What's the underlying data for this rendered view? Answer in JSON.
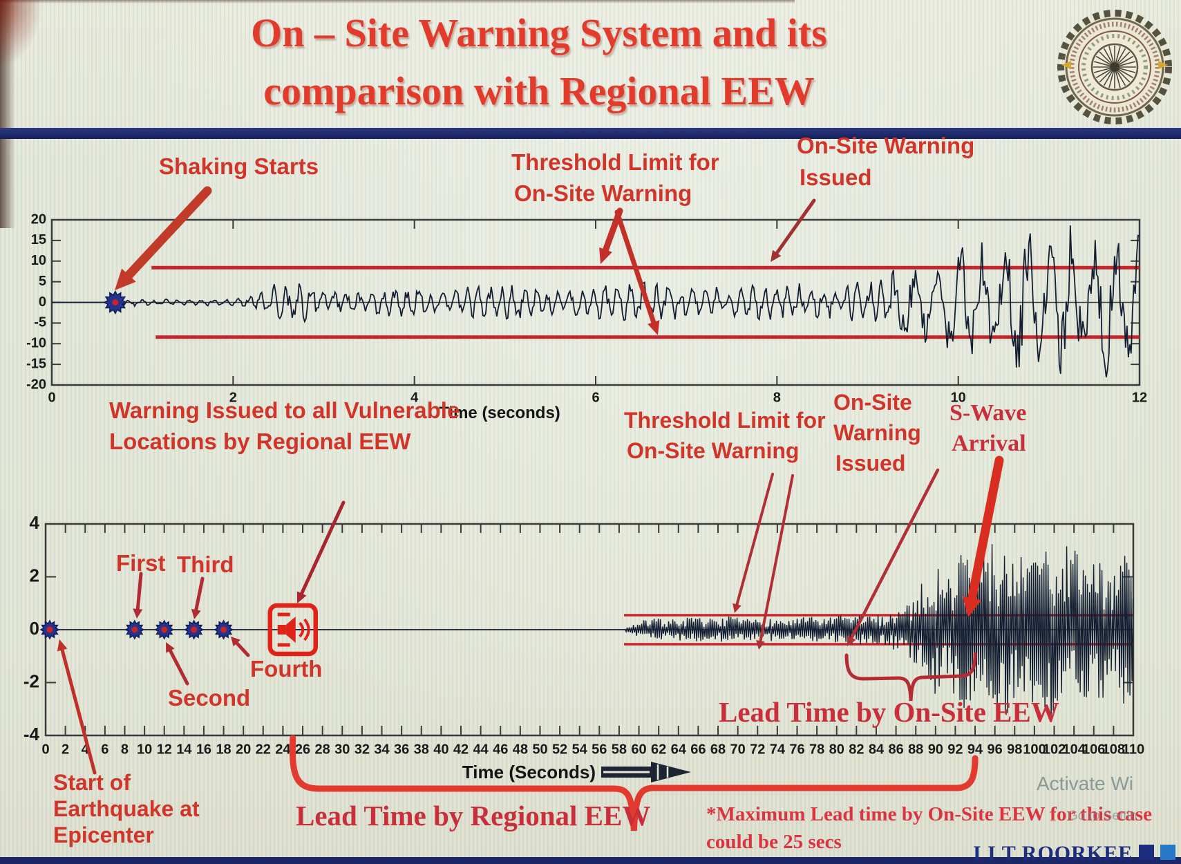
{
  "title": {
    "line1": "On – Site Warning System and its",
    "line2": "comparison with Regional EEW"
  },
  "logo": {
    "name": "iit-roorkee-seal"
  },
  "colors": {
    "title_red": "#e23b2b",
    "annotation_red": "#d13529",
    "serif_red": "#c92f3a",
    "threshold_red": "#c5262b",
    "arrow_dark_red": "#b02c32",
    "waveform": "#141e33",
    "marker_blue": "#23338f",
    "marker_center_red": "#cc2222",
    "navy_bar": "#1b2766",
    "brand_navy": "#1d2e7e"
  },
  "ann": {
    "shaking_starts": "Shaking Starts",
    "threshold_top_l1": "Threshold Limit for",
    "threshold_top_l2": "On-Site Warning",
    "onsite_top_l1": "On-Site Warning",
    "onsite_top_l2": "Issued",
    "warning_vulnerable_l1": "Warning Issued to all Vulnerable",
    "warning_vulnerable_l2": "Locations by Regional EEW",
    "first": "First",
    "second": "Second",
    "third": "Third",
    "fourth": "Fourth",
    "threshold_bot_l1": "Threshold Limit for",
    "threshold_bot_l2": "On-Site Warning",
    "onsite_bot_l1": "On-Site",
    "onsite_bot_l2": "Warning",
    "onsite_bot_l3": "Issued",
    "swave_l1": "S-Wave",
    "swave_l2": "Arrival",
    "start_epicenter_l1": "Start of",
    "start_epicenter_l2": "Earthquake at",
    "start_epicenter_l3": "Epicenter",
    "lead_onsite": "Lead Time by On-Site EEW",
    "lead_regional": "Lead Time by Regional EEW",
    "footnote_l1": "*Maximum Lead time by On-Site EEW for this case",
    "footnote_l2": "could be 25 secs"
  },
  "footer": {
    "brand": "I I T ROORKEE",
    "squares": [
      "#1d2e7e",
      "#2878c8",
      "#2f8c46"
    ],
    "watermark_line1": "Activate Wi",
    "watermark_line2": "Go to Settin"
  },
  "chart_data": [
    {
      "type": "line",
      "subtype": "seismogram",
      "xlabel": "Time (seconds)",
      "xlim": [
        0,
        12
      ],
      "ylim": [
        -20,
        20
      ],
      "xticks": [
        0,
        2,
        4,
        6,
        8,
        10,
        12
      ],
      "yticks": [
        20,
        15,
        10,
        5,
        0,
        -5,
        -10,
        -15,
        -20
      ],
      "grid": false,
      "thresholds": {
        "upper": 8.4,
        "lower": -8.4,
        "start_x": 1.1,
        "color": "#c5262b"
      },
      "events": {
        "shaking_starts_x": 0.7,
        "onsite_warning_issued_x": 9.2
      },
      "series": [
        {
          "name": "on-site ground acceleration",
          "amplitude_envelope": [
            [
              0,
              0
            ],
            [
              0.65,
              0
            ],
            [
              0.7,
              1.0
            ],
            [
              0.95,
              0.7
            ],
            [
              1.5,
              0.55
            ],
            [
              2.05,
              0.8
            ],
            [
              2.3,
              2.2
            ],
            [
              2.45,
              4.6
            ],
            [
              2.65,
              4.8
            ],
            [
              2.85,
              3.6
            ],
            [
              3.1,
              2.2
            ],
            [
              3.5,
              2.4
            ],
            [
              3.9,
              3.2
            ],
            [
              4.3,
              2.6
            ],
            [
              4.7,
              3.1
            ],
            [
              5.0,
              3.8
            ],
            [
              5.4,
              2.7
            ],
            [
              5.8,
              3.0
            ],
            [
              6.2,
              3.6
            ],
            [
              6.6,
              4.2
            ],
            [
              7.0,
              3.0
            ],
            [
              7.4,
              3.2
            ],
            [
              7.8,
              3.3
            ],
            [
              8.2,
              3.6
            ],
            [
              8.6,
              3.1
            ],
            [
              9.0,
              4.2
            ],
            [
              9.25,
              6.5
            ],
            [
              9.5,
              9.5
            ],
            [
              9.7,
              7.5
            ],
            [
              9.95,
              11
            ],
            [
              10.2,
              13.5
            ],
            [
              10.45,
              10
            ],
            [
              10.7,
              16
            ],
            [
              10.95,
              12
            ],
            [
              11.2,
              16.5
            ],
            [
              11.45,
              11
            ],
            [
              11.7,
              17
            ],
            [
              11.85,
              13
            ],
            [
              12,
              15
            ]
          ]
        }
      ]
    },
    {
      "type": "line",
      "subtype": "seismogram",
      "xlabel": "Time (Seconds)",
      "xlim": [
        0,
        110
      ],
      "ylim": [
        -4,
        4
      ],
      "xtick_step": 2,
      "yticks": [
        4,
        2,
        0,
        -2,
        -4
      ],
      "grid": false,
      "thresholds": {
        "upper": 0.55,
        "lower": -0.55,
        "start_x": 58.5,
        "color": "#c5262b"
      },
      "events": {
        "start_of_earthquake_x": 0,
        "p_wave_detections": [
          {
            "label": "First",
            "x": 9
          },
          {
            "label": "Second",
            "x": 12
          },
          {
            "label": "Third",
            "x": 15
          },
          {
            "label": "Fourth",
            "x": 18
          }
        ],
        "regional_warning_issued_x": 25,
        "onsite_warning_issued_x": 80,
        "s_wave_arrival_x": 93,
        "lead_time_onsite_span": [
          81,
          94
        ],
        "lead_time_regional_span": [
          25,
          94
        ],
        "max_onsite_lead_time": "could be 25 secs"
      },
      "series": [
        {
          "name": "ground motion at vulnerable location",
          "amplitude_envelope": [
            [
              0,
              0
            ],
            [
              58.4,
              0
            ],
            [
              59,
              0.15
            ],
            [
              60,
              0.32
            ],
            [
              61.5,
              0.45
            ],
            [
              63,
              0.38
            ],
            [
              65,
              0.48
            ],
            [
              67,
              0.42
            ],
            [
              69,
              0.5
            ],
            [
              71,
              0.4
            ],
            [
              73,
              0.45
            ],
            [
              75,
              0.38
            ],
            [
              77,
              0.5
            ],
            [
              79,
              0.44
            ],
            [
              80.5,
              0.55
            ],
            [
              82,
              0.6
            ],
            [
              83.5,
              0.52
            ],
            [
              85,
              0.62
            ],
            [
              86.5,
              0.9
            ],
            [
              88,
              1.4
            ],
            [
              89,
              2.0
            ],
            [
              90,
              2.7
            ],
            [
              90.8,
              1.8
            ],
            [
              91.5,
              2.3
            ],
            [
              92.5,
              3.1
            ],
            [
              93.5,
              3.6
            ],
            [
              94.5,
              3.0
            ],
            [
              95.5,
              3.5
            ],
            [
              96.5,
              2.9
            ],
            [
              97.5,
              3.4
            ],
            [
              98.5,
              2.8
            ],
            [
              99.5,
              3.3
            ],
            [
              100.5,
              2.9
            ],
            [
              101.5,
              3.5
            ],
            [
              102.5,
              3.0
            ],
            [
              103.5,
              3.4
            ],
            [
              104.5,
              2.8
            ],
            [
              105.5,
              3.3
            ],
            [
              106.5,
              2.7
            ],
            [
              107.5,
              3.1
            ],
            [
              108.5,
              2.6
            ],
            [
              109.2,
              2.9
            ],
            [
              110,
              2.4
            ]
          ]
        }
      ]
    }
  ]
}
